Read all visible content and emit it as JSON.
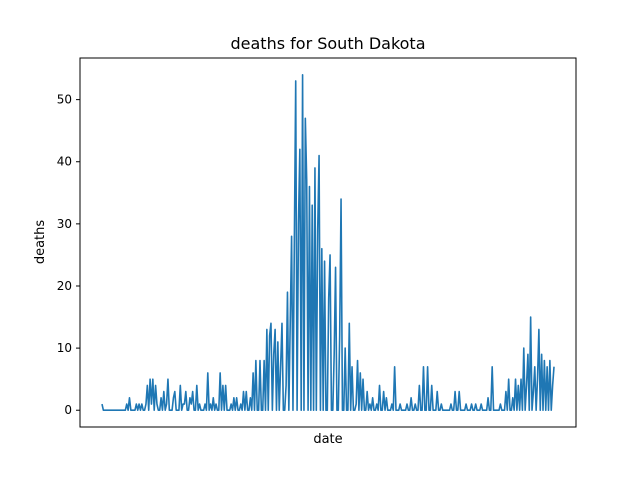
{
  "chart_data": {
    "type": "line",
    "title": "deaths for South Dakota",
    "xlabel": "date",
    "ylabel": "deaths",
    "ylim": [
      -2.7,
      56.7
    ],
    "yticks": [
      0,
      10,
      20,
      30,
      40,
      50
    ],
    "xticks": [],
    "grid": false,
    "legend": "none",
    "series_color": "#1f77b4",
    "series": [
      {
        "values": [
          1,
          0,
          0,
          0,
          0,
          0,
          0,
          0,
          0,
          0,
          0,
          0,
          0,
          0,
          0,
          0,
          0,
          0,
          1,
          0,
          2,
          0,
          0,
          0,
          0,
          1,
          0,
          1,
          0,
          1,
          0,
          0,
          1,
          4,
          0,
          5,
          1,
          5,
          0,
          4,
          1,
          0,
          0,
          2,
          0,
          3,
          0,
          1,
          5,
          0,
          0,
          0,
          2,
          3,
          0,
          0,
          0,
          4,
          0,
          1,
          1,
          3,
          0,
          0,
          2,
          1,
          3,
          0,
          0,
          4,
          0,
          1,
          0,
          0,
          0,
          1,
          0,
          6,
          0,
          1,
          0,
          2,
          0,
          1,
          0,
          0,
          6,
          0,
          4,
          0,
          4,
          0,
          0,
          0,
          1,
          0,
          2,
          0,
          2,
          0,
          0,
          1,
          0,
          3,
          0,
          3,
          0,
          0,
          2,
          0,
          6,
          0,
          8,
          0,
          0,
          8,
          0,
          0,
          8,
          0,
          13,
          0,
          12,
          14,
          0,
          9,
          13,
          0,
          11,
          0,
          7,
          14,
          0,
          0,
          4,
          19,
          0,
          14,
          28,
          0,
          27,
          53,
          0,
          30,
          42,
          0,
          54,
          0,
          47,
          37,
          0,
          36,
          0,
          33,
          0,
          39,
          0,
          29,
          41,
          0,
          26,
          0,
          24,
          0,
          0,
          18,
          25,
          0,
          0,
          9,
          23,
          0,
          0,
          12,
          34,
          0,
          0,
          10,
          0,
          0,
          14,
          0,
          7,
          0,
          0,
          1,
          8,
          0,
          6,
          0,
          5,
          0,
          0,
          3,
          0,
          1,
          0,
          2,
          0,
          0,
          1,
          0,
          4,
          0,
          0,
          3,
          0,
          2,
          0,
          0,
          0,
          1,
          0,
          7,
          0,
          0,
          0,
          1,
          0,
          0,
          0,
          0,
          1,
          0,
          0,
          2,
          0,
          0,
          1,
          0,
          0,
          4,
          0,
          0,
          7,
          0,
          0,
          7,
          0,
          0,
          4,
          0,
          0,
          0,
          3,
          0,
          0,
          1,
          0,
          0,
          0,
          0,
          0,
          0,
          1,
          0,
          0,
          3,
          0,
          0,
          3,
          0,
          0,
          0,
          0,
          1,
          0,
          0,
          0,
          1,
          0,
          0,
          1,
          0,
          0,
          0,
          1,
          0,
          0,
          0,
          0,
          2,
          0,
          0,
          7,
          0,
          0,
          0,
          0,
          0,
          1,
          0,
          0,
          0,
          3,
          0,
          5,
          0,
          0,
          2,
          0,
          5,
          0,
          4,
          0,
          5,
          0,
          10,
          0,
          4,
          9,
          0,
          15,
          0,
          3,
          7,
          0,
          5,
          13,
          0,
          9,
          0,
          8,
          0,
          7,
          0,
          8,
          0,
          4,
          7
        ]
      }
    ]
  }
}
